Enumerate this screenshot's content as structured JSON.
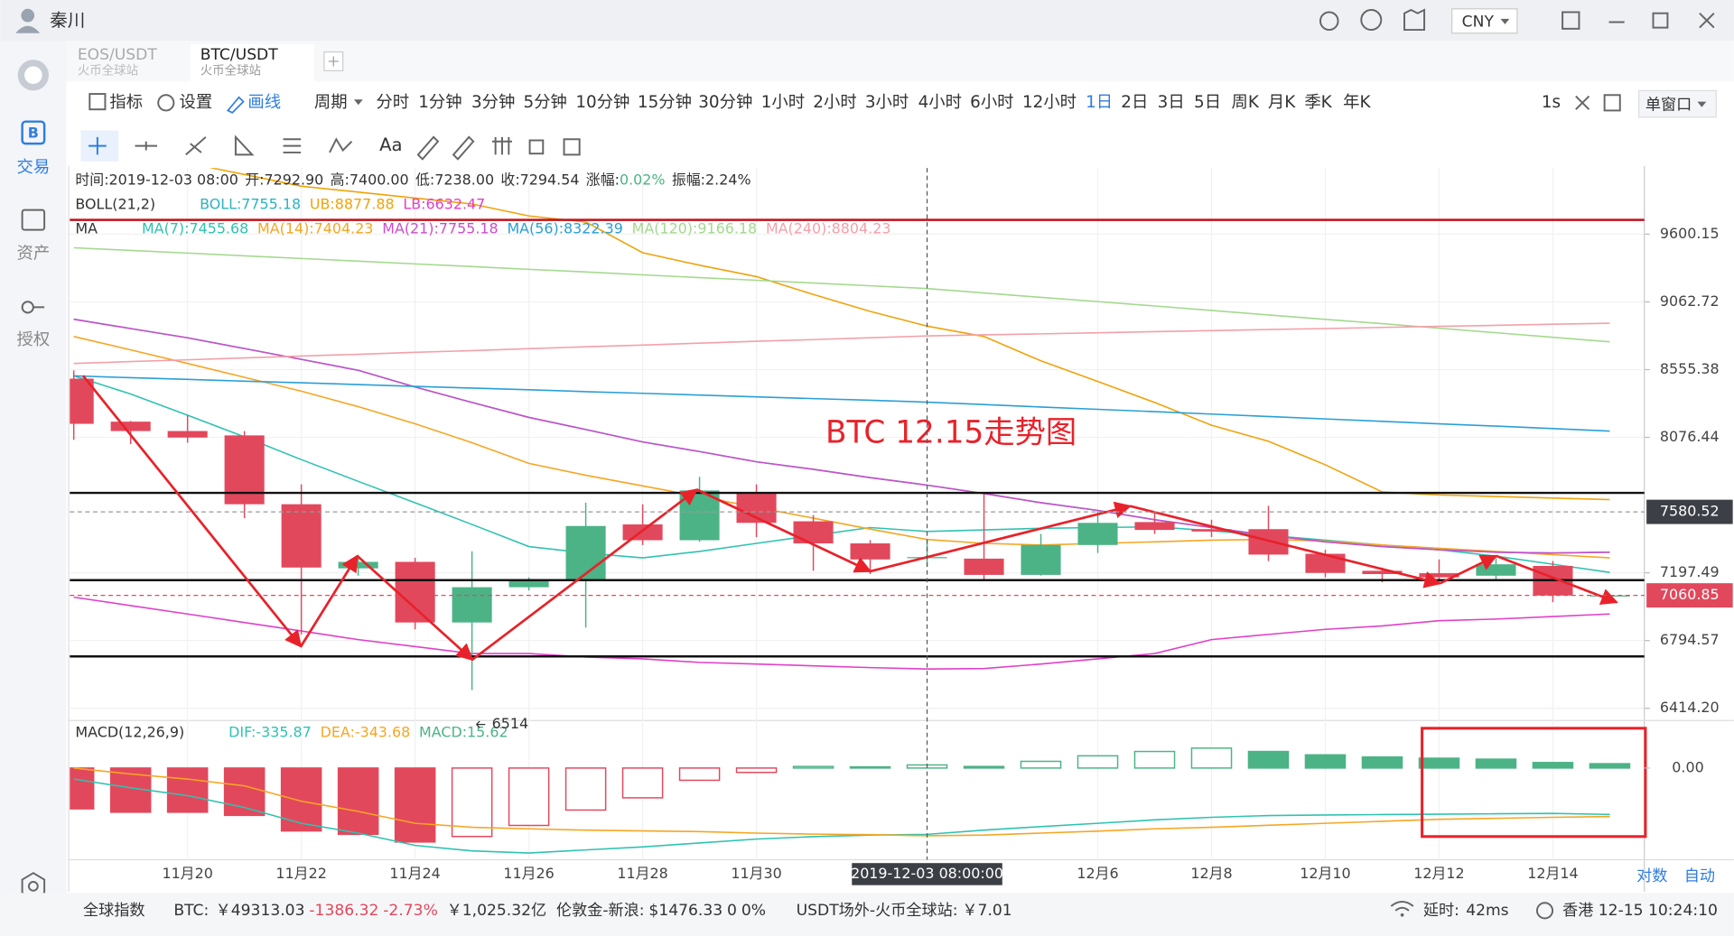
{
  "window": {
    "user": "秦川",
    "currency": "CNY"
  },
  "tabs": [
    {
      "pair": "EOS/USDT",
      "exchange": "火币全球站"
    },
    {
      "pair": "BTC/USDT",
      "exchange": "火币全球站"
    }
  ],
  "sidebar": [
    "交易",
    "资产",
    "授权"
  ],
  "toolbar": {
    "items": [
      "指标",
      "设置",
      "画线",
      "周期"
    ],
    "periods": [
      "分时",
      "1分钟",
      "3分钟",
      "5分钟",
      "10分钟",
      "15分钟",
      "30分钟",
      "1小时",
      "2小时",
      "3小时",
      "4小时",
      "6小时",
      "12小时",
      "1日",
      "2日",
      "3日",
      "5日",
      "周K",
      "月K",
      "季K",
      "年K"
    ],
    "active_period": 13,
    "refresh": "1s",
    "window_mode": "单窗口",
    "text_tool": "Aa"
  },
  "chart_data": {
    "type": "candlestick",
    "info": [
      "时间:2019-12-03 08:00",
      "开:7292.90",
      "高:7400.00",
      "低:7238.00",
      "收:7294.54",
      "涨幅:",
      "0.02%",
      "振幅:2.24%"
    ],
    "annotation": "BTC 12.15走势图",
    "crosshair_label": "2019-12-03 08:00:00",
    "crosshair_price": 7580.52,
    "categories": [
      null,
      null,
      "11月20",
      null,
      "11月22",
      null,
      "11月24",
      null,
      "11月26",
      null,
      "11月28",
      null,
      "11月30",
      null,
      null,
      null,
      null,
      null,
      "12月6",
      null,
      "12月8",
      null,
      "12月10",
      null,
      "12月12",
      null,
      "12月14",
      null
    ],
    "candles": {
      "open": [
        8490,
        8185,
        8120,
        8090,
        7630,
        7225,
        7265,
        6900,
        7110,
        7160,
        7500,
        7400,
        7710,
        7520,
        7380,
        7292.9,
        7285,
        7185,
        7370,
        7515,
        7470,
        7470,
        7315,
        7210,
        7195,
        7180,
        7240,
        7060
      ],
      "high": [
        8550,
        8190,
        8230,
        8120,
        7760,
        7300,
        7290,
        7330,
        7170,
        7640,
        7630,
        7810,
        7760,
        7560,
        7400,
        7400,
        7700,
        7440,
        7590,
        7580,
        7530,
        7620,
        7340,
        7230,
        7280,
        7290,
        7270,
        7070
      ],
      "low": [
        8060,
        8030,
        8040,
        7540,
        6830,
        7180,
        6860,
        6514,
        7090,
        6870,
        7370,
        7390,
        7420,
        7210,
        7190,
        7238,
        7150,
        7180,
        7320,
        7440,
        7420,
        7270,
        7170,
        7140,
        7130,
        7150,
        7020,
        7050
      ],
      "close": [
        8170,
        8120,
        8075,
        7630,
        7230,
        7265,
        6900,
        7110,
        7150,
        7490,
        7400,
        7720,
        7510,
        7380,
        7280,
        7294.54,
        7185,
        7370,
        7510,
        7465,
        7455,
        7310,
        7197,
        7190,
        7170,
        7250,
        7060,
        7060.85
      ]
    },
    "color_up": "#4cb386",
    "color_down": "#e2485c",
    "log_scale": true,
    "grid": true,
    "ylim": [
      6348,
      10156
    ],
    "yticks": [
      9600.15,
      9062.72,
      8555.38,
      8076.44,
      7197.49,
      6794.57,
      {
        "value": 6414.2,
        "label": "6414.20"
      }
    ],
    "overlays": [
      {
        "label": "BOLL(21,2)",
        "lines": [
          {
            "name": "BOLL:7755.18",
            "color": "#2bb3c0",
            "values": [
              8930,
              8860,
              8790,
              8710,
              8630,
              8550,
              8430,
              8320,
              8215,
              8130,
              8045,
              7980,
              7910,
              7860,
              7805,
              7755,
              7700,
              7640,
              7590,
              7530,
              7480,
              7430,
              7390,
              7360,
              7340,
              7325,
              7320,
              7325
            ]
          },
          {
            "name": "UB:8877.88",
            "color": "#f0a30a",
            "values": [
              10400,
              10300,
              10200,
              10100,
              10000,
              9950,
              9900,
              9850,
              9750,
              9700,
              9450,
              9350,
              9260,
              9120,
              8990,
              8878,
              8800,
              8620,
              8470,
              8320,
              8160,
              8050,
              7890,
              7710,
              7690,
              7680,
              7670,
              7660
            ]
          },
          {
            "name": "LB:6632.47",
            "color": "#e040c8",
            "values": [
              7050,
              7000,
              6950,
              6900,
              6850,
              6800,
              6760,
              6720,
              6720,
              6700,
              6690,
              6670,
              6660,
              6650,
              6640,
              6632.47,
              6635,
              6660,
              6690,
              6720,
              6800,
              6830,
              6860,
              6880,
              6910,
              6920,
              6935,
              6950
            ]
          }
        ]
      },
      {
        "label": "MA",
        "lines": [
          {
            "name": "MA(7):7455.68",
            "color": "#2fc2b0",
            "values": [
              8510,
              8380,
              8230,
              8080,
              7925,
              7780,
              7640,
              7500,
              7360,
              7320,
              7290,
              7330,
              7380,
              7430,
              7480,
              7455.68,
              7465,
              7475,
              7480,
              7485,
              7460,
              7430,
              7400,
              7370,
              7340,
              7300,
              7250,
              7200
            ]
          },
          {
            "name": "MA(14):7404.23",
            "color": "#f5a623",
            "values": [
              8800,
              8700,
              8600,
              8500,
              8400,
              8290,
              8170,
              8040,
              7900,
              7820,
              7750,
              7680,
              7610,
              7540,
              7470,
              7404.23,
              7380,
              7370,
              7380,
              7390,
              7400,
              7405,
              7395,
              7370,
              7350,
              7330,
              7310,
              7290
            ]
          },
          {
            "name": "MA(21):7755.18",
            "color": "#c94fc9",
            "values": [
              8930,
              8860,
              8790,
              8710,
              8630,
              8550,
              8430,
              8320,
              8215,
              8130,
              8045,
              7980,
              7910,
              7860,
              7805,
              7755.18,
              7700,
              7640,
              7590,
              7530,
              7480,
              7430,
              7390,
              7360,
              7340,
              7325,
              7320,
              7325
            ]
          },
          {
            "name": "MA(56):8322.39",
            "color": "#2a9fd6",
            "values": [
              8510,
              8497,
              8485,
              8472,
              8460,
              8447,
              8435,
              8422,
              8410,
              8397,
              8385,
              8372,
              8360,
              8347,
              8335,
              8322.39,
              8305,
              8288,
              8271,
              8255,
              8238,
              8221,
              8204,
              8187,
              8170,
              8154,
              8137,
              8120
            ]
          },
          {
            "name": "MA(120):9166.18",
            "color": "#a3d98e",
            "values": [
              9490,
              9468,
              9447,
              9425,
              9404,
              9382,
              9360,
              9339,
              9317,
              9296,
              9274,
              9252,
              9231,
              9209,
              9188,
              9166.18,
              9132,
              9098,
              9065,
              9031,
              8997,
              8963,
              8929,
              8896,
              8862,
              8828,
              8794,
              8760
            ]
          },
          {
            "name": "MA(240):8804.23",
            "color": "#f3a0aa",
            "values": [
              8600,
              8614,
              8627,
              8641,
              8655,
              8668,
              8682,
              8695,
              8709,
              8723,
              8736,
              8750,
              8764,
              8777,
              8791,
              8804.23,
              8812,
              8820,
              8828,
              8836,
              8844,
              8852,
              8860,
              8868,
              8876,
              8884,
              8892,
              8900
            ]
          }
        ]
      }
    ],
    "macd": {
      "label": "MACD(12,26,9)",
      "ylim": [
        -465,
        241
      ],
      "yticks": [
        {
          "value": 0,
          "label": "0.00"
        }
      ],
      "histogram": {
        "name": "MACD:15.62",
        "color_up": "#4cb386",
        "color_down": "#e2485c",
        "values": [
          -207,
          -224,
          -224,
          -240,
          -319,
          -336,
          -375,
          -347,
          -291,
          -213,
          -151,
          -62,
          -22,
          8,
          6,
          15.62,
          8,
          34,
          62,
          84,
          101,
          84,
          67,
          56,
          50,
          45,
          28,
          22
        ]
      },
      "lines": [
        {
          "name": "DIF:-335.87",
          "color": "#2fc2b0",
          "values": [
            -56,
            -100,
            -140,
            -200,
            -280,
            -330,
            -392,
            -420,
            -431,
            -415,
            -400,
            -380,
            -360,
            -348,
            -340,
            -335.87,
            -315,
            -297,
            -280,
            -263,
            -250,
            -241,
            -238,
            -236,
            -234,
            -232,
            -230,
            -235
          ]
        },
        {
          "name": "DEA:-343.68",
          "color": "#f5a623",
          "values": [
            0,
            -30,
            -56,
            -90,
            -168,
            -220,
            -280,
            -300,
            -308,
            -315,
            -319,
            -322,
            -330,
            -335,
            -338,
            -343.68,
            -340,
            -330,
            -320,
            -308,
            -300,
            -290,
            -280,
            -270,
            -260,
            -255,
            -250,
            -246
          ]
        }
      ]
    },
    "scale_modes": [
      "对数",
      "自动"
    ]
  },
  "status_bar": {
    "index_label": "全球指数",
    "btc_label": "BTC:",
    "btc_price": "￥49313.03",
    "btc_change": "-1386.32",
    "btc_change_pct": "-2.73%",
    "btc_volume": "￥1,025.32亿",
    "gold_label": "伦敦金-新浪:",
    "gold_price": "$1476.33",
    "gold_change": "0",
    "gold_change_pct": "0%",
    "usdt_label": "USDT场外-火币全球站:",
    "usdt_price": "￥7.01",
    "latency_label": "延时:",
    "latency": "42ms",
    "clock": "香港 12-15 10:24:10"
  }
}
